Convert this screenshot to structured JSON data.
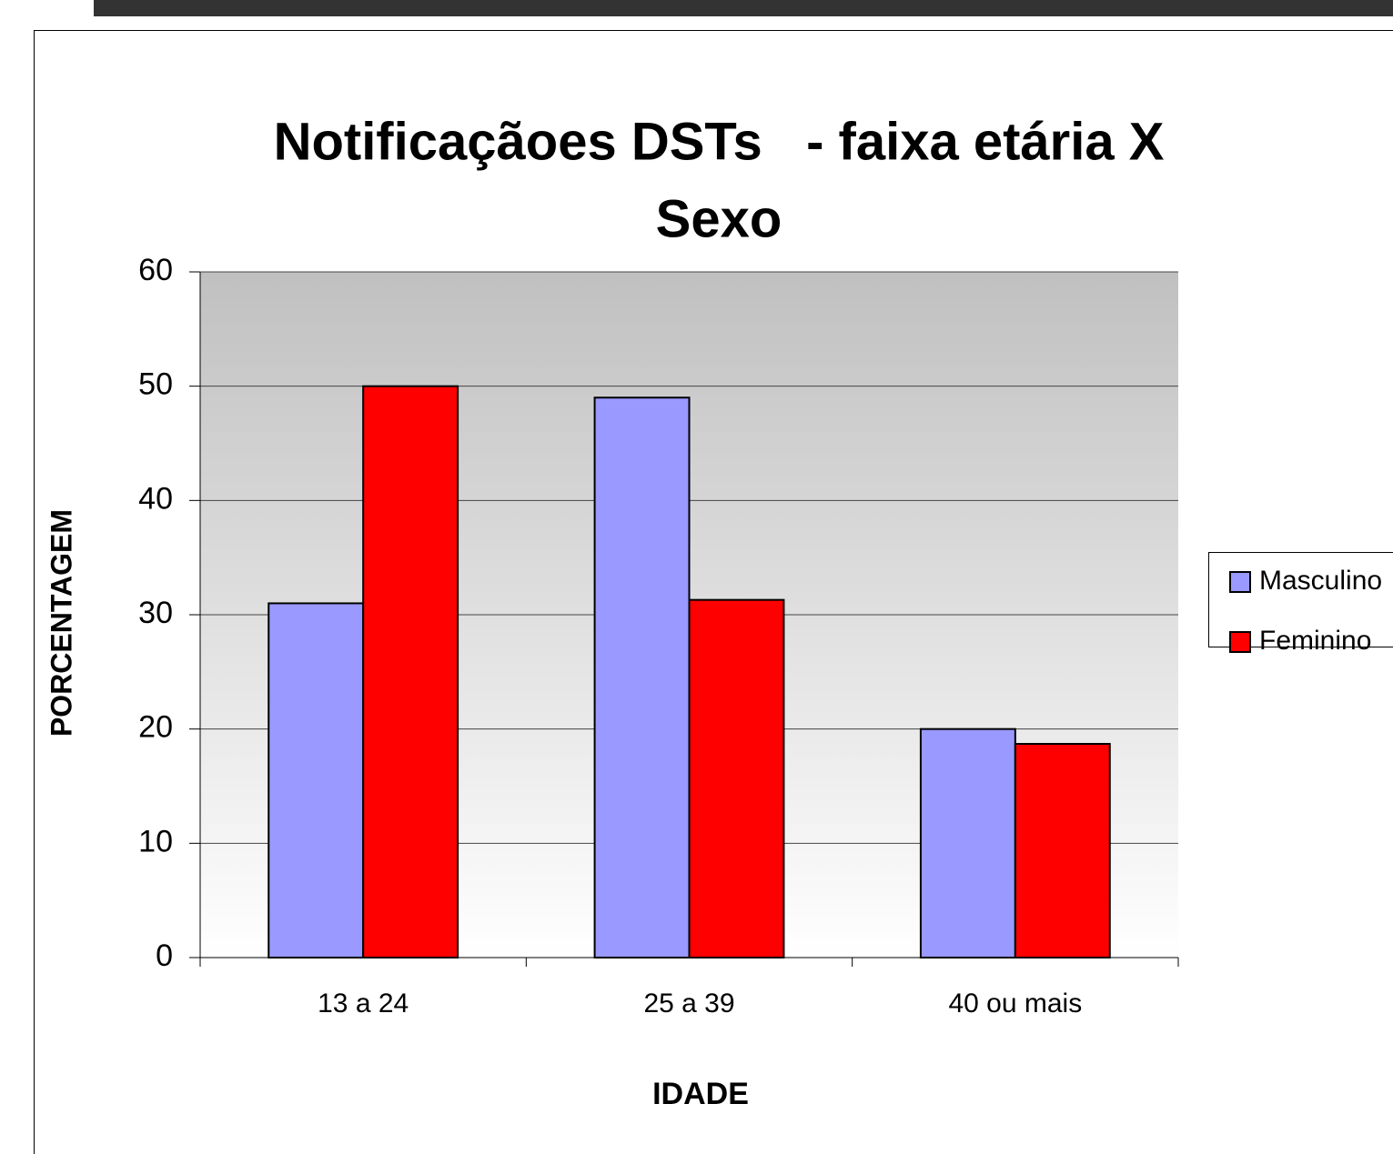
{
  "chart_data": {
    "type": "bar",
    "title": [
      "Notificaçãoes DSTs   - faixa etária X",
      "Sexo"
    ],
    "x_label": "IDADE",
    "y_label": "PORCENTAGEM",
    "categories": [
      "13 a 24",
      "25 a 39",
      "40 ou mais"
    ],
    "series": [
      {
        "name": "Masculino",
        "color": "#9999ff",
        "values": [
          31,
          49,
          20
        ]
      },
      {
        "name": "Feminino",
        "color": "#ff0000",
        "values": [
          50,
          31.3,
          18.7
        ]
      }
    ],
    "ylim": [
      0,
      60
    ],
    "yticks": [
      0,
      10,
      20,
      30,
      40,
      50,
      60
    ],
    "grid": true,
    "legend": "right"
  }
}
